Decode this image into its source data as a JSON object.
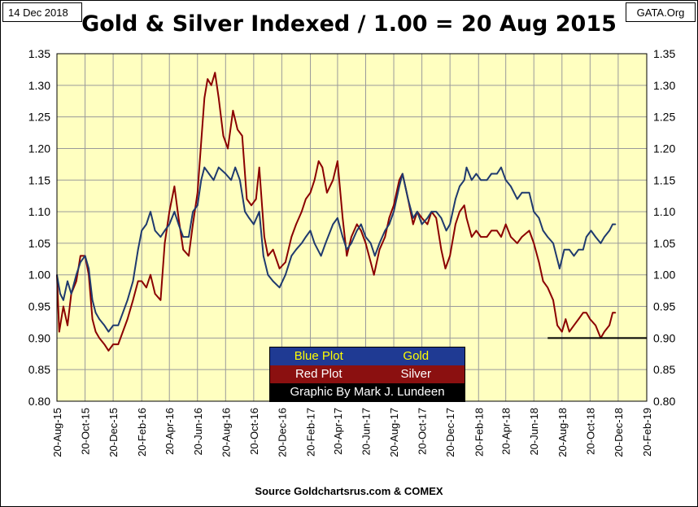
{
  "header": {
    "date": "14 Dec 2018",
    "source": "GATA.Org",
    "title": "Gold & Silver Indexed / 1.00 = 20 Aug 2015"
  },
  "footer": {
    "source_note": "Source Goldchartsrus.com & COMEX"
  },
  "legend": {
    "gold_plot": "Blue Plot",
    "gold_name": "Gold",
    "silver_plot": "Red Plot",
    "silver_name": "Silver",
    "credit": "Graphic By Mark J. Lundeen"
  },
  "colors": {
    "gold": "#1f3a6e",
    "silver": "#8b0000",
    "plot_bg": "#ffffc0",
    "grid": "#9a9a9a"
  },
  "chart_data": {
    "type": "line",
    "ylim": [
      0.8,
      1.35
    ],
    "y_ticks": [
      "0.80",
      "0.85",
      "0.90",
      "0.95",
      "1.00",
      "1.05",
      "1.10",
      "1.15",
      "1.20",
      "1.25",
      "1.30",
      "1.35"
    ],
    "x_ticks": [
      "20-Aug-15",
      "20-Oct-15",
      "20-Dec-15",
      "20-Feb-16",
      "20-Apr-16",
      "20-Jun-16",
      "20-Aug-16",
      "20-Oct-16",
      "20-Dec-16",
      "20-Feb-17",
      "20-Apr-17",
      "20-Jun-17",
      "20-Aug-17",
      "20-Oct-17",
      "20-Dec-17",
      "20-Feb-18",
      "20-Apr-18",
      "20-Jun-18",
      "20-Aug-18",
      "20-Oct-18",
      "20-Dec-18",
      "20-Feb-19"
    ],
    "x_range": [
      "2015-08-20",
      "2019-02-20"
    ],
    "grid": true,
    "reference_line": {
      "y": 0.9,
      "from": "2018-07-20",
      "to": "2019-02-20"
    },
    "series": [
      {
        "name": "Gold",
        "values": [
          [
            "2015-08-20",
            1.0
          ],
          [
            "2015-08-27",
            0.97
          ],
          [
            "2015-09-03",
            0.96
          ],
          [
            "2015-09-12",
            0.99
          ],
          [
            "2015-09-20",
            0.97
          ],
          [
            "2015-10-01",
            1.0
          ],
          [
            "2015-10-10",
            1.02
          ],
          [
            "2015-10-20",
            1.03
          ],
          [
            "2015-10-28",
            1.01
          ],
          [
            "2015-11-05",
            0.96
          ],
          [
            "2015-11-12",
            0.94
          ],
          [
            "2015-11-20",
            0.93
          ],
          [
            "2015-12-01",
            0.92
          ],
          [
            "2015-12-10",
            0.91
          ],
          [
            "2015-12-20",
            0.92
          ],
          [
            "2015-12-31",
            0.92
          ],
          [
            "2016-01-10",
            0.94
          ],
          [
            "2016-01-20",
            0.96
          ],
          [
            "2016-02-01",
            0.99
          ],
          [
            "2016-02-12",
            1.04
          ],
          [
            "2016-02-20",
            1.07
          ],
          [
            "2016-03-01",
            1.08
          ],
          [
            "2016-03-10",
            1.1
          ],
          [
            "2016-03-20",
            1.07
          ],
          [
            "2016-04-01",
            1.06
          ],
          [
            "2016-04-10",
            1.07
          ],
          [
            "2016-04-20",
            1.08
          ],
          [
            "2016-05-01",
            1.1
          ],
          [
            "2016-05-10",
            1.08
          ],
          [
            "2016-05-20",
            1.06
          ],
          [
            "2016-06-01",
            1.06
          ],
          [
            "2016-06-10",
            1.1
          ],
          [
            "2016-06-20",
            1.11
          ],
          [
            "2016-06-28",
            1.15
          ],
          [
            "2016-07-05",
            1.17
          ],
          [
            "2016-07-15",
            1.16
          ],
          [
            "2016-07-25",
            1.15
          ],
          [
            "2016-08-05",
            1.17
          ],
          [
            "2016-08-20",
            1.16
          ],
          [
            "2016-09-01",
            1.15
          ],
          [
            "2016-09-10",
            1.17
          ],
          [
            "2016-09-20",
            1.15
          ],
          [
            "2016-10-01",
            1.1
          ],
          [
            "2016-10-10",
            1.09
          ],
          [
            "2016-10-20",
            1.08
          ],
          [
            "2016-11-01",
            1.1
          ],
          [
            "2016-11-10",
            1.03
          ],
          [
            "2016-11-20",
            1.0
          ],
          [
            "2016-12-01",
            0.99
          ],
          [
            "2016-12-15",
            0.98
          ],
          [
            "2016-12-28",
            1.0
          ],
          [
            "2017-01-10",
            1.03
          ],
          [
            "2017-01-20",
            1.04
          ],
          [
            "2017-02-01",
            1.05
          ],
          [
            "2017-02-10",
            1.06
          ],
          [
            "2017-02-20",
            1.07
          ],
          [
            "2017-03-01",
            1.05
          ],
          [
            "2017-03-15",
            1.03
          ],
          [
            "2017-03-25",
            1.05
          ],
          [
            "2017-04-10",
            1.08
          ],
          [
            "2017-04-20",
            1.09
          ],
          [
            "2017-05-01",
            1.06
          ],
          [
            "2017-05-10",
            1.04
          ],
          [
            "2017-05-20",
            1.05
          ],
          [
            "2017-06-01",
            1.07
          ],
          [
            "2017-06-10",
            1.08
          ],
          [
            "2017-06-20",
            1.06
          ],
          [
            "2017-07-01",
            1.05
          ],
          [
            "2017-07-10",
            1.03
          ],
          [
            "2017-07-20",
            1.05
          ],
          [
            "2017-08-01",
            1.07
          ],
          [
            "2017-08-10",
            1.08
          ],
          [
            "2017-08-20",
            1.1
          ],
          [
            "2017-09-01",
            1.14
          ],
          [
            "2017-09-08",
            1.16
          ],
          [
            "2017-09-20",
            1.12
          ],
          [
            "2017-10-01",
            1.09
          ],
          [
            "2017-10-10",
            1.1
          ],
          [
            "2017-10-20",
            1.08
          ],
          [
            "2017-11-01",
            1.09
          ],
          [
            "2017-11-10",
            1.1
          ],
          [
            "2017-11-20",
            1.1
          ],
          [
            "2017-12-01",
            1.09
          ],
          [
            "2017-12-12",
            1.07
          ],
          [
            "2017-12-20",
            1.08
          ],
          [
            "2018-01-01",
            1.12
          ],
          [
            "2018-01-10",
            1.14
          ],
          [
            "2018-01-20",
            1.15
          ],
          [
            "2018-01-25",
            1.17
          ],
          [
            "2018-02-05",
            1.15
          ],
          [
            "2018-02-15",
            1.16
          ],
          [
            "2018-02-25",
            1.15
          ],
          [
            "2018-03-10",
            1.15
          ],
          [
            "2018-03-20",
            1.16
          ],
          [
            "2018-04-01",
            1.16
          ],
          [
            "2018-04-10",
            1.17
          ],
          [
            "2018-04-20",
            1.15
          ],
          [
            "2018-05-01",
            1.14
          ],
          [
            "2018-05-15",
            1.12
          ],
          [
            "2018-05-25",
            1.13
          ],
          [
            "2018-06-10",
            1.13
          ],
          [
            "2018-06-20",
            1.1
          ],
          [
            "2018-07-01",
            1.09
          ],
          [
            "2018-07-10",
            1.07
          ],
          [
            "2018-07-20",
            1.06
          ],
          [
            "2018-08-01",
            1.05
          ],
          [
            "2018-08-15",
            1.01
          ],
          [
            "2018-08-25",
            1.04
          ],
          [
            "2018-09-05",
            1.04
          ],
          [
            "2018-09-15",
            1.03
          ],
          [
            "2018-09-25",
            1.04
          ],
          [
            "2018-10-05",
            1.04
          ],
          [
            "2018-10-12",
            1.06
          ],
          [
            "2018-10-22",
            1.07
          ],
          [
            "2018-11-01",
            1.06
          ],
          [
            "2018-11-12",
            1.05
          ],
          [
            "2018-11-20",
            1.06
          ],
          [
            "2018-12-01",
            1.07
          ],
          [
            "2018-12-08",
            1.08
          ],
          [
            "2018-12-14",
            1.08
          ]
        ]
      },
      {
        "name": "Silver",
        "values": [
          [
            "2015-08-20",
            1.0
          ],
          [
            "2015-08-25",
            0.91
          ],
          [
            "2015-09-03",
            0.95
          ],
          [
            "2015-09-12",
            0.92
          ],
          [
            "2015-09-20",
            0.97
          ],
          [
            "2015-10-01",
            0.99
          ],
          [
            "2015-10-10",
            1.03
          ],
          [
            "2015-10-20",
            1.03
          ],
          [
            "2015-10-28",
            1.0
          ],
          [
            "2015-11-05",
            0.93
          ],
          [
            "2015-11-12",
            0.91
          ],
          [
            "2015-11-20",
            0.9
          ],
          [
            "2015-12-01",
            0.89
          ],
          [
            "2015-12-10",
            0.88
          ],
          [
            "2015-12-20",
            0.89
          ],
          [
            "2015-12-31",
            0.89
          ],
          [
            "2016-01-10",
            0.91
          ],
          [
            "2016-01-20",
            0.93
          ],
          [
            "2016-02-01",
            0.96
          ],
          [
            "2016-02-12",
            0.99
          ],
          [
            "2016-02-20",
            0.99
          ],
          [
            "2016-03-01",
            0.98
          ],
          [
            "2016-03-10",
            1.0
          ],
          [
            "2016-03-20",
            0.97
          ],
          [
            "2016-04-01",
            0.96
          ],
          [
            "2016-04-10",
            1.05
          ],
          [
            "2016-04-20",
            1.1
          ],
          [
            "2016-05-01",
            1.14
          ],
          [
            "2016-05-10",
            1.09
          ],
          [
            "2016-05-20",
            1.04
          ],
          [
            "2016-06-01",
            1.03
          ],
          [
            "2016-06-10",
            1.08
          ],
          [
            "2016-06-20",
            1.13
          ],
          [
            "2016-06-28",
            1.21
          ],
          [
            "2016-07-05",
            1.28
          ],
          [
            "2016-07-12",
            1.31
          ],
          [
            "2016-07-20",
            1.3
          ],
          [
            "2016-07-28",
            1.32
          ],
          [
            "2016-08-05",
            1.28
          ],
          [
            "2016-08-15",
            1.22
          ],
          [
            "2016-08-25",
            1.2
          ],
          [
            "2016-09-05",
            1.26
          ],
          [
            "2016-09-15",
            1.23
          ],
          [
            "2016-09-25",
            1.22
          ],
          [
            "2016-10-05",
            1.12
          ],
          [
            "2016-10-15",
            1.11
          ],
          [
            "2016-10-25",
            1.12
          ],
          [
            "2016-11-01",
            1.17
          ],
          [
            "2016-11-12",
            1.06
          ],
          [
            "2016-11-20",
            1.03
          ],
          [
            "2016-12-01",
            1.04
          ],
          [
            "2016-12-15",
            1.01
          ],
          [
            "2016-12-28",
            1.02
          ],
          [
            "2017-01-10",
            1.06
          ],
          [
            "2017-01-20",
            1.08
          ],
          [
            "2017-02-01",
            1.1
          ],
          [
            "2017-02-10",
            1.12
          ],
          [
            "2017-02-20",
            1.13
          ],
          [
            "2017-03-01",
            1.15
          ],
          [
            "2017-03-10",
            1.18
          ],
          [
            "2017-03-18",
            1.17
          ],
          [
            "2017-03-28",
            1.13
          ],
          [
            "2017-04-10",
            1.15
          ],
          [
            "2017-04-20",
            1.18
          ],
          [
            "2017-05-01",
            1.09
          ],
          [
            "2017-05-10",
            1.03
          ],
          [
            "2017-05-20",
            1.06
          ],
          [
            "2017-06-01",
            1.08
          ],
          [
            "2017-06-10",
            1.07
          ],
          [
            "2017-06-20",
            1.05
          ],
          [
            "2017-07-01",
            1.02
          ],
          [
            "2017-07-08",
            1.0
          ],
          [
            "2017-07-20",
            1.04
          ],
          [
            "2017-08-01",
            1.06
          ],
          [
            "2017-08-10",
            1.09
          ],
          [
            "2017-08-20",
            1.11
          ],
          [
            "2017-09-01",
            1.15
          ],
          [
            "2017-09-08",
            1.16
          ],
          [
            "2017-09-20",
            1.12
          ],
          [
            "2017-10-01",
            1.08
          ],
          [
            "2017-10-10",
            1.1
          ],
          [
            "2017-10-20",
            1.09
          ],
          [
            "2017-11-01",
            1.08
          ],
          [
            "2017-11-10",
            1.1
          ],
          [
            "2017-11-20",
            1.09
          ],
          [
            "2017-12-01",
            1.04
          ],
          [
            "2017-12-10",
            1.01
          ],
          [
            "2017-12-20",
            1.03
          ],
          [
            "2018-01-01",
            1.08
          ],
          [
            "2018-01-10",
            1.1
          ],
          [
            "2018-01-20",
            1.11
          ],
          [
            "2018-01-25",
            1.09
          ],
          [
            "2018-02-05",
            1.06
          ],
          [
            "2018-02-15",
            1.07
          ],
          [
            "2018-02-25",
            1.06
          ],
          [
            "2018-03-10",
            1.06
          ],
          [
            "2018-03-20",
            1.07
          ],
          [
            "2018-04-01",
            1.07
          ],
          [
            "2018-04-10",
            1.06
          ],
          [
            "2018-04-20",
            1.08
          ],
          [
            "2018-05-01",
            1.06
          ],
          [
            "2018-05-15",
            1.05
          ],
          [
            "2018-05-25",
            1.06
          ],
          [
            "2018-06-10",
            1.07
          ],
          [
            "2018-06-20",
            1.05
          ],
          [
            "2018-07-01",
            1.02
          ],
          [
            "2018-07-10",
            0.99
          ],
          [
            "2018-07-20",
            0.98
          ],
          [
            "2018-08-01",
            0.96
          ],
          [
            "2018-08-10",
            0.92
          ],
          [
            "2018-08-20",
            0.91
          ],
          [
            "2018-08-28",
            0.93
          ],
          [
            "2018-09-05",
            0.91
          ],
          [
            "2018-09-15",
            0.92
          ],
          [
            "2018-09-25",
            0.93
          ],
          [
            "2018-10-05",
            0.94
          ],
          [
            "2018-10-12",
            0.94
          ],
          [
            "2018-10-20",
            0.93
          ],
          [
            "2018-11-01",
            0.92
          ],
          [
            "2018-11-12",
            0.9
          ],
          [
            "2018-11-20",
            0.91
          ],
          [
            "2018-12-01",
            0.92
          ],
          [
            "2018-12-08",
            0.94
          ],
          [
            "2018-12-14",
            0.94
          ]
        ]
      }
    ]
  }
}
